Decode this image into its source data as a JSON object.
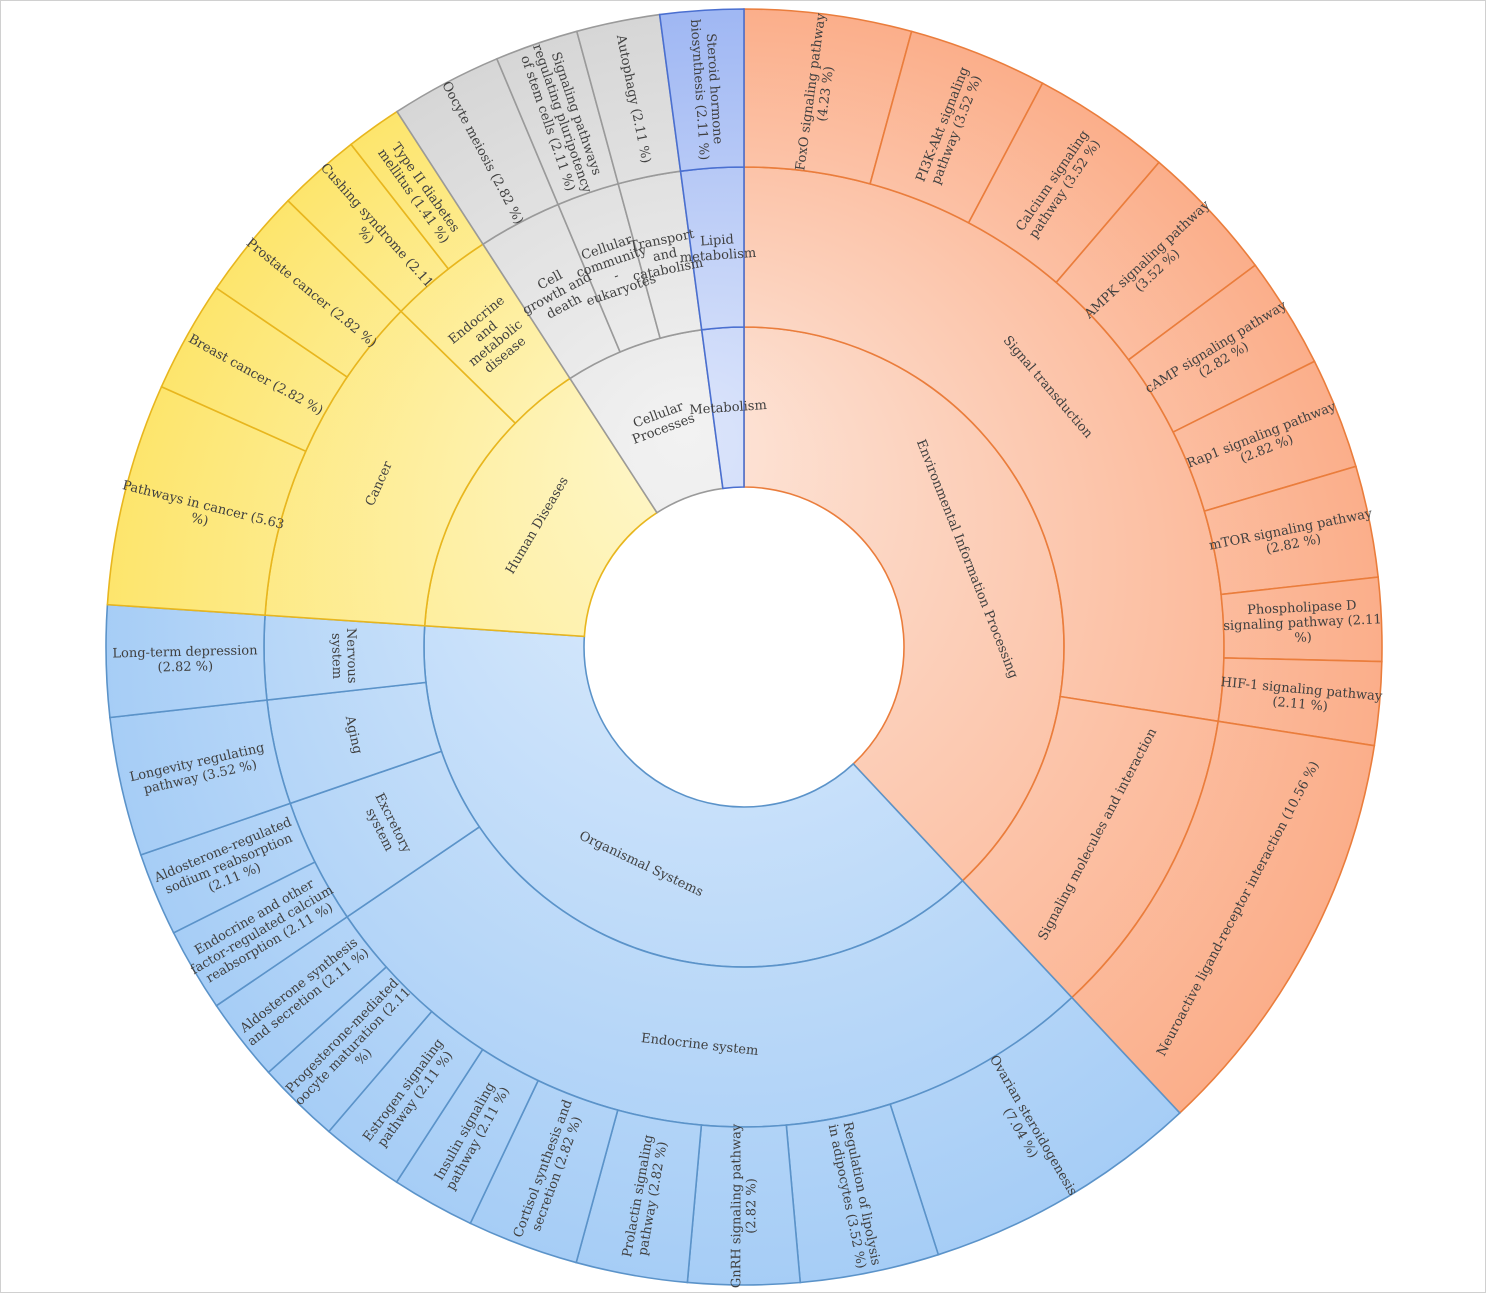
{
  "chart_data": {
    "type": "sunburst",
    "title": "",
    "categories": [
      {
        "name": "Environmental Information Processing",
        "colors": {
          "light": "#fde6da",
          "dark": "#fbae8a",
          "stroke": "#ea7d3c"
        },
        "children": [
          {
            "name": "Signal transduction",
            "children": [
              {
                "name": "FoxO signaling pathway (4.23 %)",
                "value": 4.23
              },
              {
                "name": "PI3K-Akt signaling pathway (3.52 %)",
                "value": 3.52
              },
              {
                "name": "Calcium signaling pathway (3.52 %)",
                "value": 3.52
              },
              {
                "name": "AMPK signaling pathway (3.52 %)",
                "value": 3.52
              },
              {
                "name": "cAMP signaling pathway (2.82 %)",
                "value": 2.82
              },
              {
                "name": "Rap1 signaling pathway (2.82 %)",
                "value": 2.82
              },
              {
                "name": "mTOR signaling pathway (2.82 %)",
                "value": 2.82
              },
              {
                "name": "Phospholipase D signaling pathway (2.11 %)",
                "value": 2.11
              },
              {
                "name": "HIF-1 signaling pathway (2.11 %)",
                "value": 2.11
              }
            ]
          },
          {
            "name": "Signaling molecules and interaction",
            "children": [
              {
                "name": "Neuroactive ligand-receptor interaction (10.56 %)",
                "value": 10.56
              }
            ]
          }
        ]
      },
      {
        "name": "Organismal Systems",
        "colors": {
          "light": "#e2effd",
          "dark": "#a6cdf6",
          "stroke": "#5b93c9"
        },
        "children": [
          {
            "name": "Endocrine system",
            "children": [
              {
                "name": "Ovarian steroidogenesis (7.04 %)",
                "value": 7.04
              },
              {
                "name": "Regulation of lipolysis in adipocytes (3.52 %)",
                "value": 3.52
              },
              {
                "name": "GnRH signaling pathway (2.82 %)",
                "value": 2.82
              },
              {
                "name": "Prolactin signaling pathway (2.82 %)",
                "value": 2.82
              },
              {
                "name": "Cortisol synthesis and secretion (2.82 %)",
                "value": 2.82
              },
              {
                "name": "Insulin signaling pathway (2.11 %)",
                "value": 2.11
              },
              {
                "name": "Estrogen signaling pathway (2.11 %)",
                "value": 2.11
              },
              {
                "name": "Progesterone-mediated oocyte maturation (2.11 %)",
                "value": 2.11
              },
              {
                "name": "Aldosterone synthesis and secretion (2.11 %)",
                "value": 2.11
              }
            ]
          },
          {
            "name": "Excretory system",
            "children": [
              {
                "name": "Endocrine and other factor-regulated calcium reabsorption (2.11 %)",
                "value": 2.11
              },
              {
                "name": "Aldosterone-regulated sodium reabsorption (2.11 %)",
                "value": 2.11
              }
            ]
          },
          {
            "name": "Aging",
            "children": [
              {
                "name": "Longevity regulating pathway (3.52 %)",
                "value": 3.52
              }
            ]
          },
          {
            "name": "Nervous system",
            "children": [
              {
                "name": "Long-term depression (2.82 %)",
                "value": 2.82
              }
            ]
          }
        ]
      },
      {
        "name": "Human Diseases",
        "colors": {
          "light": "#fef7cc",
          "dark": "#fde56c",
          "stroke": "#e8b61e"
        },
        "children": [
          {
            "name": "Cancer",
            "children": [
              {
                "name": "Pathways in cancer (5.63 %)",
                "value": 5.63
              },
              {
                "name": "Breast cancer (2.82 %)",
                "value": 2.82
              },
              {
                "name": "Prostate cancer (2.82 %)",
                "value": 2.82
              }
            ]
          },
          {
            "name": "Endocrine and metabolic disease",
            "children": [
              {
                "name": "Cushing syndrome (2.11 %)",
                "value": 2.11
              },
              {
                "name": "Type II diabetes mellitus (1.41 %)",
                "value": 1.41
              }
            ]
          }
        ]
      },
      {
        "name": "Cellular Processes",
        "colors": {
          "light": "#f2f2f2",
          "dark": "#d6d6d6",
          "stroke": "#9a9a9a"
        },
        "children": [
          {
            "name": "Cell growth and death",
            "children": [
              {
                "name": "Oocyte meiosis (2.82 %)",
                "value": 2.82
              }
            ]
          },
          {
            "name": "Cellular community - eukaryotes",
            "children": [
              {
                "name": "Signaling pathways regulating pluripotency of stem cells (2.11 %)",
                "value": 2.11
              }
            ]
          },
          {
            "name": "Transport and catabolism",
            "children": [
              {
                "name": "Autophagy (2.11 %)",
                "value": 2.11
              }
            ]
          }
        ]
      },
      {
        "name": "Metabolism",
        "colors": {
          "light": "#dce5fb",
          "dark": "#9fb7f3",
          "stroke": "#4a6fd0"
        },
        "children": [
          {
            "name": "Lipid metabolism",
            "children": [
              {
                "name": "Steroid hormone biosynthesis (2.11 %)",
                "value": 2.11
              }
            ]
          }
        ]
      }
    ]
  }
}
